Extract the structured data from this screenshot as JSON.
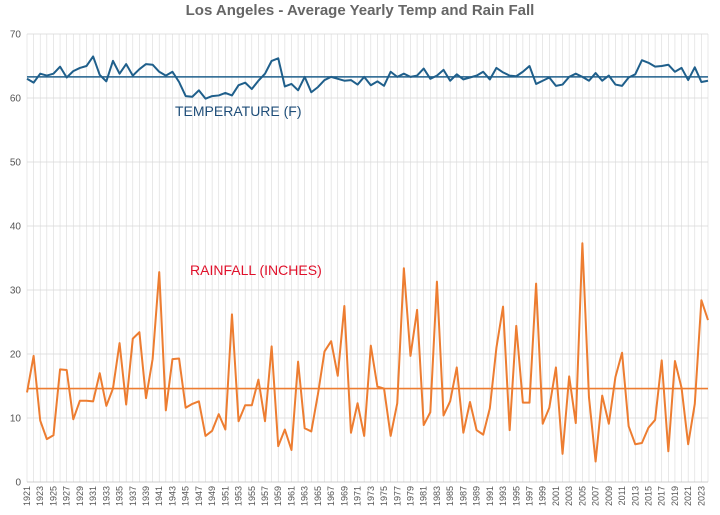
{
  "chart_data": {
    "type": "line",
    "title": "Los Angeles - Average Yearly Temp and Rain Fall",
    "xlabel": "",
    "ylabel": "",
    "ylim": [
      0,
      70
    ],
    "yticks": [
      0,
      10,
      20,
      30,
      40,
      50,
      60,
      70
    ],
    "grid": true,
    "x": [
      1921,
      1922,
      1923,
      1924,
      1925,
      1926,
      1927,
      1928,
      1929,
      1930,
      1931,
      1932,
      1933,
      1934,
      1935,
      1936,
      1937,
      1938,
      1939,
      1940,
      1941,
      1942,
      1943,
      1944,
      1945,
      1946,
      1947,
      1948,
      1949,
      1950,
      1951,
      1952,
      1953,
      1954,
      1955,
      1956,
      1957,
      1958,
      1959,
      1960,
      1961,
      1962,
      1963,
      1964,
      1965,
      1966,
      1967,
      1968,
      1969,
      1970,
      1971,
      1972,
      1973,
      1974,
      1975,
      1976,
      1977,
      1978,
      1979,
      1980,
      1981,
      1982,
      1983,
      1984,
      1985,
      1986,
      1987,
      1988,
      1989,
      1990,
      1991,
      1992,
      1993,
      1994,
      1995,
      1996,
      1997,
      1998,
      1999,
      2000,
      2001,
      2002,
      2003,
      2004,
      2005,
      2006,
      2007,
      2008,
      2009,
      2010,
      2011,
      2012,
      2013,
      2014,
      2015,
      2016,
      2017,
      2018,
      2019,
      2020,
      2021,
      2022,
      2023,
      2024
    ],
    "xtick_labels": [
      "1921",
      "1923",
      "1925",
      "1927",
      "1929",
      "1931",
      "1933",
      "1935",
      "1937",
      "1939",
      "1941",
      "1943",
      "1945",
      "1947",
      "1949",
      "1951",
      "1953",
      "1955",
      "1957",
      "1959",
      "1961",
      "1963",
      "1965",
      "1967",
      "1969",
      "1971",
      "1973",
      "1975",
      "1977",
      "1979",
      "1981",
      "1983",
      "1985",
      "1987",
      "1989",
      "1991",
      "1993",
      "1995",
      "1997",
      "1999",
      "2001",
      "2003",
      "2005",
      "2007",
      "2009",
      "2011",
      "2013",
      "2015",
      "2017",
      "2019",
      "2021",
      "2023"
    ],
    "series": [
      {
        "name": "TEMPERATURE (F)",
        "color": "#1f5f8b",
        "trend": 63.3,
        "values": [
          63.0,
          62.4,
          63.8,
          63.5,
          63.8,
          64.9,
          63.2,
          64.2,
          64.7,
          65.0,
          66.5,
          63.6,
          62.6,
          65.8,
          63.8,
          65.3,
          63.5,
          64.5,
          65.3,
          65.2,
          64.1,
          63.5,
          64.1,
          62.5,
          60.3,
          60.2,
          61.2,
          59.9,
          60.3,
          60.4,
          60.8,
          60.4,
          62.0,
          62.4,
          61.4,
          62.7,
          63.8,
          65.8,
          66.2,
          61.8,
          62.2,
          61.2,
          63.3,
          60.9,
          61.7,
          62.8,
          63.3,
          63.0,
          62.7,
          62.8,
          62.1,
          63.3,
          62.0,
          62.6,
          61.9,
          64.1,
          63.3,
          63.8,
          63.3,
          63.5,
          64.6,
          63.0,
          63.5,
          64.4,
          62.7,
          63.7,
          62.9,
          63.2,
          63.5,
          64.1,
          62.9,
          64.7,
          64.0,
          63.5,
          63.4,
          64.1,
          65.0,
          62.2,
          62.7,
          63.2,
          61.9,
          62.1,
          63.3,
          63.8,
          63.3,
          62.7,
          63.9,
          62.7,
          63.5,
          62.1,
          61.9,
          63.2,
          63.7,
          65.9,
          65.5,
          64.9,
          65.0,
          65.2,
          64.1,
          64.7,
          62.8,
          64.8,
          62.5,
          62.7
        ]
      },
      {
        "name": "RAINFALL (INCHES)",
        "color": "#ed7d31",
        "trend": 14.6,
        "values": [
          14.0,
          19.7,
          9.6,
          6.7,
          7.3,
          17.6,
          17.5,
          9.8,
          12.7,
          12.7,
          12.6,
          17.0,
          11.9,
          14.6,
          21.7,
          12.1,
          22.4,
          23.4,
          13.1,
          19.2,
          32.8,
          11.2,
          19.2,
          19.3,
          11.6,
          12.2,
          12.6,
          7.2,
          8.0,
          10.6,
          8.2,
          26.2,
          9.5,
          12.0,
          12.0,
          16.0,
          9.5,
          21.2,
          5.6,
          8.2,
          5.0,
          18.8,
          8.4,
          7.9,
          13.7,
          20.4,
          22.0,
          16.6,
          27.5,
          7.7,
          12.3,
          7.2,
          21.3,
          14.9,
          14.6,
          7.2,
          12.3,
          33.4,
          19.7,
          26.9,
          8.9,
          10.9,
          31.3,
          10.4,
          12.6,
          17.9,
          7.7,
          12.5,
          8.1,
          7.4,
          11.5,
          21.0,
          27.4,
          8.1,
          24.4,
          12.4,
          12.4,
          31.0,
          9.1,
          11.6,
          17.9,
          4.4,
          16.5,
          9.2,
          37.3,
          13.2,
          3.2,
          13.5,
          9.1,
          16.4,
          20.2,
          8.7,
          5.9,
          6.1,
          8.5,
          9.7,
          19.0,
          4.8,
          18.9,
          14.7,
          5.9,
          12.2,
          28.4,
          25.3
        ]
      }
    ],
    "annotations": [
      "TEMPERATURE (F)",
      "RAINFALL (INCHES)"
    ]
  }
}
